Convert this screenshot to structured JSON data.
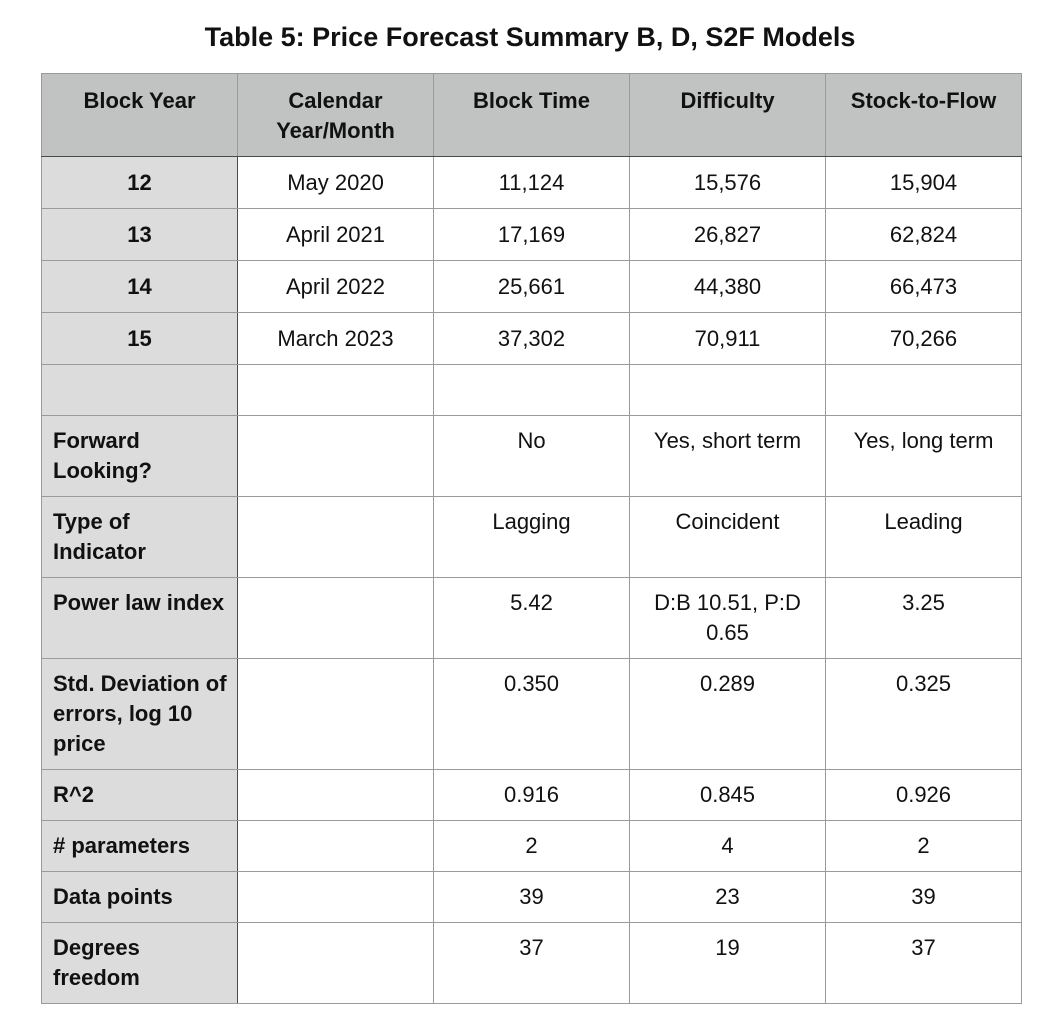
{
  "title": "Table 5: Price Forecast Summary B, D, S2F Models",
  "headers": [
    "Block Year",
    "Calendar Year/Month",
    "Block Time",
    "Difficulty",
    "Stock-to-Flow"
  ],
  "forecast_rows": [
    {
      "block_year": "12",
      "calendar": "May 2020",
      "block_time": "11,124",
      "difficulty": "15,576",
      "s2f": "15,904"
    },
    {
      "block_year": "13",
      "calendar": "April 2021",
      "block_time": "17,169",
      "difficulty": "26,827",
      "s2f": "62,824"
    },
    {
      "block_year": "14",
      "calendar": "April 2022",
      "block_time": "25,661",
      "difficulty": "44,380",
      "s2f": "66,473"
    },
    {
      "block_year": "15",
      "calendar": "March 2023",
      "block_time": "37,302",
      "difficulty": "70,911",
      "s2f": "70,266"
    }
  ],
  "stats_rows": [
    {
      "label": "Forward Looking?",
      "block_time": "No",
      "difficulty": "Yes, short term",
      "s2f": "Yes, long term"
    },
    {
      "label": "Type of Indicator",
      "block_time": "Lagging",
      "difficulty": "Coincident",
      "s2f": "Leading"
    },
    {
      "label": "Power law index",
      "block_time": "5.42",
      "difficulty": "D:B 10.51, P:D 0.65",
      "s2f": "3.25"
    },
    {
      "label": "Std. Deviation of errors, log 10 price",
      "block_time": "0.350",
      "difficulty": "0.289",
      "s2f": "0.325"
    },
    {
      "label": "R^2",
      "block_time": "0.916",
      "difficulty": "0.845",
      "s2f": "0.926"
    },
    {
      "label": "# parameters",
      "block_time": "2",
      "difficulty": "4",
      "s2f": "2"
    },
    {
      "label": "Data points",
      "block_time": "39",
      "difficulty": "23",
      "s2f": "39"
    },
    {
      "label": "Degrees freedom",
      "block_time": "37",
      "difficulty": "19",
      "s2f": "37"
    }
  ],
  "colors": {
    "header_bg": "#c1c3c2",
    "label_col_bg": "#dcdcdc",
    "grid": "#9a9a9a"
  }
}
